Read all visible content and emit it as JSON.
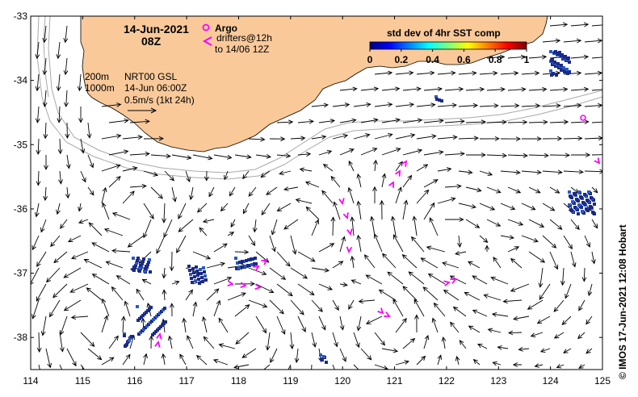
{
  "map": {
    "date": "14-Jun-2021",
    "time": "08Z",
    "lon_ticks": [
      "114",
      "115",
      "116",
      "117",
      "118",
      "119",
      "120",
      "121",
      "122",
      "123",
      "124",
      "125"
    ],
    "lat_ticks": [
      "-33",
      "-34",
      "-35",
      "-36",
      "-37",
      "-38"
    ],
    "lon_range": [
      114,
      125
    ],
    "lat_range": [
      -38.5,
      -33
    ]
  },
  "legend": {
    "argo_label": "Argo",
    "drifters_label": "drifters@12h",
    "drifters_to": "to 14/06 12Z",
    "colorbar_title": "std dev of 4hr SST comp",
    "colorbar_ticks": [
      "0",
      "0.2",
      "0.4",
      "0.6",
      "0.8",
      "1"
    ],
    "colorbar_colors": [
      "#00007f",
      "#0000ff",
      "#007fff",
      "#00ffff",
      "#7fff7f",
      "#ffff00",
      "#ff7f00",
      "#ff0000",
      "#7f0000"
    ]
  },
  "annotations": {
    "contour_200": "200m",
    "contour_1000": "1000m",
    "product": "NRT00 GSL",
    "analysis_time": "14-Jun 06:00Z",
    "scale_label": "0.5m/s (1kt 24h)"
  },
  "credit": "© IMOS 17-Jun-2021 12:08 Hobart",
  "colors": {
    "land": "#f9c99a",
    "argo": "#ff00ff",
    "drifter": "#ff00ff",
    "isobath": "#a9a9a9",
    "sst_patch": "#1a2a8a"
  }
}
